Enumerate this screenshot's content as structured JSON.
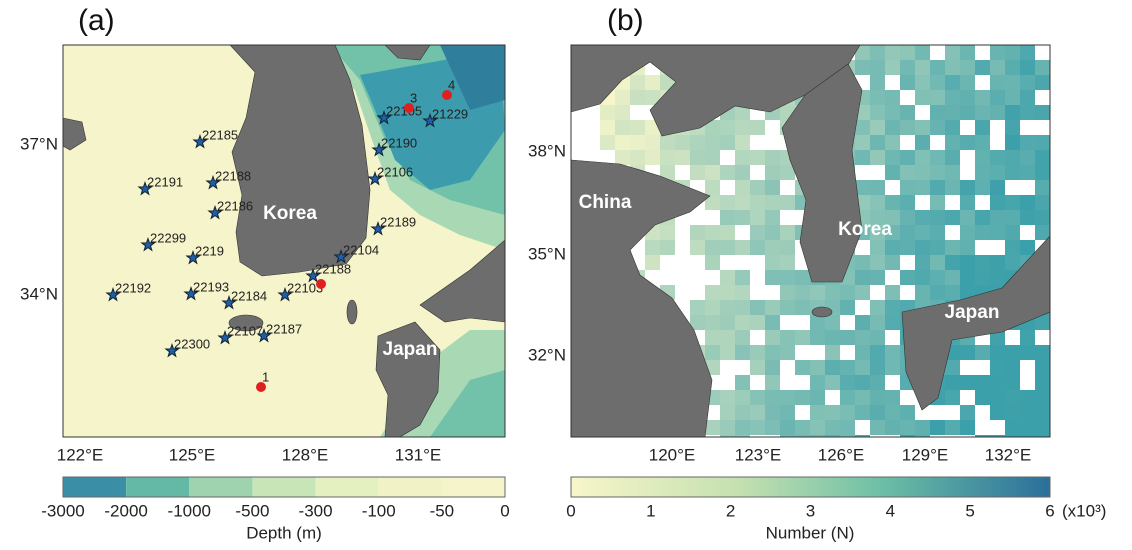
{
  "panel_a": {
    "label": "(a)",
    "lon_ticks": [
      "122°E",
      "125°E",
      "128°E",
      "131°E"
    ],
    "lat_ticks": [
      "37°N",
      "34°N"
    ],
    "places": [
      "Korea",
      "Japan"
    ],
    "stations": [
      "22185",
      "22191",
      "22188",
      "22186",
      "22299",
      "2219",
      "22192",
      "22193",
      "22184",
      "22103",
      "22188",
      "22104",
      "22189",
      "22106",
      "22190",
      "22105",
      "21229",
      "22300",
      "22107",
      "22187"
    ],
    "buoys": [
      "1",
      "3",
      "4"
    ],
    "colorbar": {
      "ticks": [
        "-3000",
        "-2000",
        "-1000",
        "-500",
        "-300",
        "-100",
        "-50",
        "0"
      ],
      "label": "Depth (m)"
    }
  },
  "panel_b": {
    "label": "(b)",
    "lon_ticks": [
      "120°E",
      "123°E",
      "126°E",
      "129°E",
      "132°E"
    ],
    "lat_ticks": [
      "38°N",
      "35°N",
      "32°N"
    ],
    "places": [
      "China",
      "Korea",
      "Japan"
    ],
    "colorbar": {
      "ticks": [
        "0",
        "1",
        "2",
        "3",
        "4",
        "5",
        "6"
      ],
      "unit": "(x10³)",
      "label": "Number (N)"
    }
  }
}
